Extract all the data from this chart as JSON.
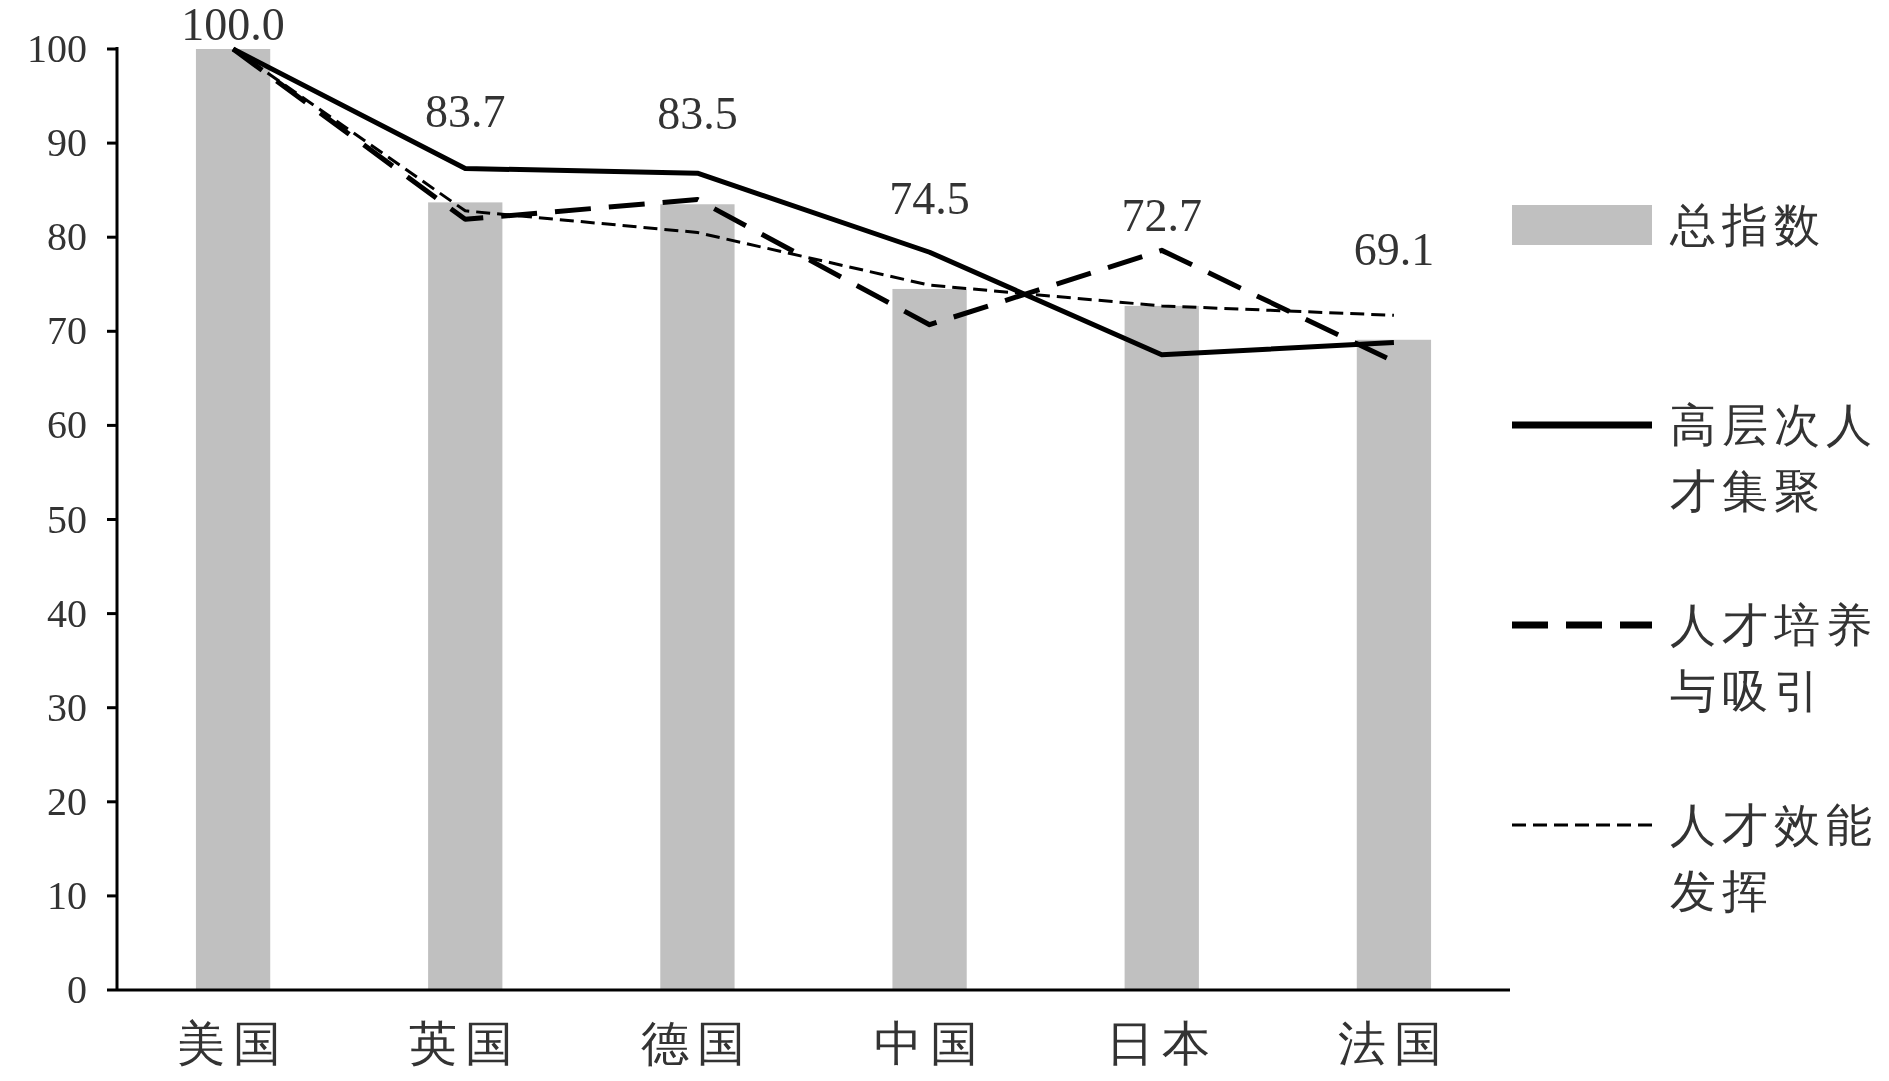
{
  "chart_data": {
    "type": "bar",
    "categories": [
      "美国",
      "英国",
      "德国",
      "中国",
      "日本",
      "法国"
    ],
    "series": [
      {
        "name": "总指数",
        "color": "#c0c0c0",
        "values": [
          100.0,
          83.7,
          83.5,
          74.5,
          72.7,
          69.1
        ],
        "value_labels": [
          "100.0",
          "83.7",
          "83.5",
          "74.5",
          "72.7",
          "69.1"
        ]
      },
      {
        "name": "高层次人才集聚",
        "type": "line",
        "color": "#000000",
        "line_style": "solid",
        "values": [
          100,
          87.3,
          86.8,
          78.4,
          67.5,
          68.8
        ]
      },
      {
        "name": "人才培养与吸引",
        "type": "line",
        "color": "#000000",
        "line_style": "dashed",
        "values": [
          100,
          81.9,
          84.0,
          70.7,
          78.6,
          66.8
        ]
      },
      {
        "name": "人才效能发挥",
        "type": "line",
        "color": "#000000",
        "line_style": "dotted",
        "values": [
          100,
          82.8,
          80.5,
          74.9,
          72.7,
          71.7
        ]
      }
    ],
    "ylim": [
      0,
      100
    ],
    "yticks": [
      0,
      10,
      20,
      30,
      40,
      50,
      60,
      70,
      80,
      90,
      100
    ],
    "grid": false,
    "legend": "right"
  }
}
